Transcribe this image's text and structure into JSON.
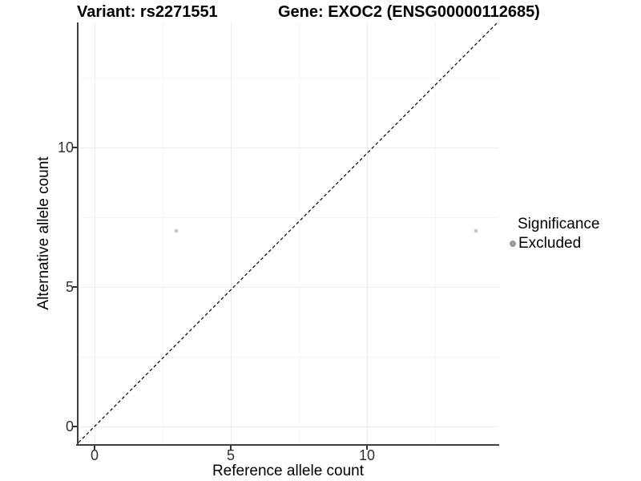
{
  "title": {
    "variant": "Variant: rs2271551",
    "gene": "Gene: EXOC2 (ENSG00000112685)"
  },
  "axes": {
    "x": {
      "label": "Reference allele count",
      "tick_labels": [
        "0",
        "5",
        "10"
      ]
    },
    "y": {
      "label": "Alternative allele count",
      "tick_labels": [
        "0",
        "5",
        "10"
      ]
    }
  },
  "legend": {
    "title": "Significance",
    "entries": [
      {
        "label": "Excluded",
        "color": "#9a9a9a"
      }
    ]
  },
  "colors": {
    "point": "#c9c9c9",
    "legend_point": "#9a9a9a",
    "grid_major": "#ececec",
    "grid_minor": "#f5f5f5",
    "axis_line": "#404040",
    "identity_line": "#000000"
  },
  "chart_data": {
    "type": "scatter",
    "title": "Variant: rs2271551 | Gene: EXOC2 (ENSG00000112685)",
    "xlabel": "Reference allele count",
    "ylabel": "Alternative allele count",
    "xlim": [
      -0.7,
      14.8
    ],
    "ylim": [
      -0.7,
      14.5
    ],
    "x_ticks": [
      0,
      5,
      10
    ],
    "y_ticks": [
      0,
      5,
      10
    ],
    "x_minor_ticks": [
      2.5,
      7.5,
      12.5
    ],
    "y_minor_ticks": [
      2.5,
      7.5,
      12.5
    ],
    "grid": "major+minor",
    "legend_position": "right",
    "series": [
      {
        "name": "Excluded",
        "color": "#c9c9c9",
        "points": [
          {
            "x": 3,
            "y": 7
          },
          {
            "x": 14,
            "y": 7
          }
        ]
      }
    ],
    "reference_line": {
      "kind": "identity y=x",
      "style": "dashed",
      "color": "#000000"
    }
  }
}
